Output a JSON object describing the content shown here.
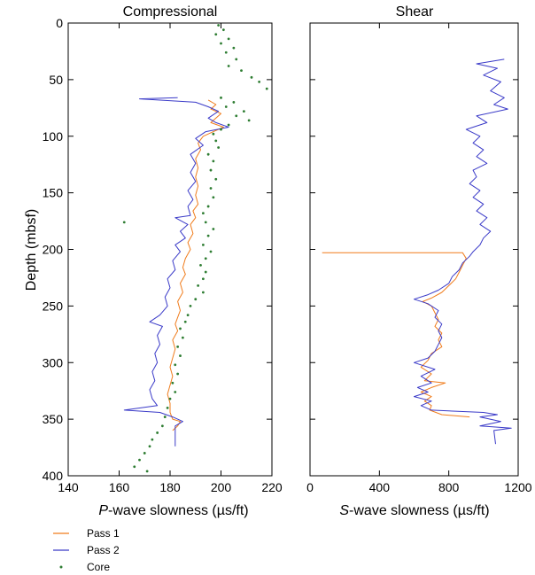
{
  "colors": {
    "pass1": "#f07c1c",
    "pass2": "#3a3ac8",
    "core": "#2e7d32",
    "axis": "#000000"
  },
  "legend": {
    "entries": [
      {
        "label": "Pass 1",
        "kind": "line",
        "color": "#f07c1c"
      },
      {
        "label": "Pass 2",
        "kind": "line",
        "color": "#3a3ac8"
      },
      {
        "label": "Core",
        "kind": "dot",
        "color": "#2e7d32"
      }
    ]
  },
  "chart_data": [
    {
      "type": "line",
      "title": "Compressional",
      "xlabel_italic": "P",
      "xlabel_rest": "-wave slowness (µs/ft)",
      "ylabel": "Depth (mbsf)",
      "xlim": [
        140,
        220
      ],
      "ylim": [
        0,
        400
      ],
      "y_inverted": true,
      "xticks": [
        140,
        160,
        180,
        200,
        220
      ],
      "yticks": [
        0,
        50,
        100,
        150,
        200,
        250,
        300,
        350,
        400
      ],
      "series": [
        {
          "name": "Pass 1",
          "points": [
            [
              195,
              68
            ],
            [
              198,
              72
            ],
            [
              196,
              76
            ],
            [
              200,
              80
            ],
            [
              198,
              84
            ],
            [
              196,
              88
            ],
            [
              201,
              92
            ],
            [
              197,
              96
            ],
            [
              193,
              100
            ],
            [
              191,
              106
            ],
            [
              192,
              112
            ],
            [
              190,
              120
            ],
            [
              191,
              128
            ],
            [
              190,
              136
            ],
            [
              191,
              144
            ],
            [
              190,
              152
            ],
            [
              191,
              160
            ],
            [
              189,
              166
            ],
            [
              190,
              172
            ],
            [
              188,
              178
            ],
            [
              189,
              186
            ],
            [
              187,
              194
            ],
            [
              188,
              200
            ],
            [
              186,
              208
            ],
            [
              185,
              216
            ],
            [
              186,
              222
            ],
            [
              184,
              230
            ],
            [
              185,
              238
            ],
            [
              183,
              246
            ],
            [
              184,
              254
            ],
            [
              183,
              260
            ],
            [
              182,
              266
            ],
            [
              183,
              272
            ],
            [
              181,
              280
            ],
            [
              182,
              288
            ],
            [
              181,
              296
            ],
            [
              180,
              304
            ],
            [
              181,
              312
            ],
            [
              180,
              320
            ],
            [
              179,
              328
            ],
            [
              180,
              336
            ],
            [
              180,
              344
            ],
            [
              181,
              350
            ],
            [
              184,
              352
            ],
            [
              183,
              356
            ],
            [
              181,
              360
            ]
          ]
        },
        {
          "name": "Pass 2",
          "points": [
            [
              183,
              66
            ],
            [
              168,
              67
            ],
            [
              190,
              70
            ],
            [
              195,
              74
            ],
            [
              199,
              78
            ],
            [
              195,
              84
            ],
            [
              198,
              88
            ],
            [
              203,
              92
            ],
            [
              194,
              96
            ],
            [
              190,
              102
            ],
            [
              193,
              108
            ],
            [
              188,
              116
            ],
            [
              190,
              124
            ],
            [
              188,
              132
            ],
            [
              190,
              140
            ],
            [
              187,
              148
            ],
            [
              189,
              156
            ],
            [
              187,
              162
            ],
            [
              188,
              170
            ],
            [
              182,
              172
            ],
            [
              187,
              178
            ],
            [
              184,
              184
            ],
            [
              186,
              190
            ],
            [
              182,
              196
            ],
            [
              184,
              202
            ],
            [
              181,
              210
            ],
            [
              182,
              218
            ],
            [
              179,
              226
            ],
            [
              180,
              234
            ],
            [
              178,
              242
            ],
            [
              179,
              250
            ],
            [
              176,
              258
            ],
            [
              172,
              264
            ],
            [
              177,
              268
            ],
            [
              175,
              276
            ],
            [
              176,
              284
            ],
            [
              174,
              292
            ],
            [
              175,
              300
            ],
            [
              173,
              308
            ],
            [
              174,
              316
            ],
            [
              172,
              324
            ],
            [
              173,
              332
            ],
            [
              175,
              338
            ],
            [
              162,
              342
            ],
            [
              176,
              344
            ],
            [
              181,
              348
            ],
            [
              185,
              352
            ],
            [
              182,
              356
            ],
            [
              182,
              362
            ],
            [
              182,
              374
            ]
          ]
        },
        {
          "name": "Core",
          "kind": "scatter",
          "points": [
            [
              199,
              2
            ],
            [
              201,
              6
            ],
            [
              198,
              10
            ],
            [
              203,
              14
            ],
            [
              200,
              18
            ],
            [
              205,
              22
            ],
            [
              202,
              26
            ],
            [
              206,
              32
            ],
            [
              203,
              38
            ],
            [
              208,
              42
            ],
            [
              212,
              48
            ],
            [
              215,
              52
            ],
            [
              218,
              58
            ],
            [
              200,
              66
            ],
            [
              205,
              70
            ],
            [
              202,
              74
            ],
            [
              209,
              78
            ],
            [
              206,
              82
            ],
            [
              211,
              86
            ],
            [
              203,
              90
            ],
            [
              200,
              94
            ],
            [
              197,
              98
            ],
            [
              198,
              104
            ],
            [
              199,
              110
            ],
            [
              195,
              116
            ],
            [
              197,
              122
            ],
            [
              196,
              130
            ],
            [
              198,
              138
            ],
            [
              196,
              146
            ],
            [
              197,
              154
            ],
            [
              195,
              162
            ],
            [
              193,
              168
            ],
            [
              194,
              176
            ],
            [
              197,
              182
            ],
            [
              195,
              188
            ],
            [
              193,
              196
            ],
            [
              196,
              202
            ],
            [
              194,
              208
            ],
            [
              192,
              214
            ],
            [
              194,
              220
            ],
            [
              193,
              226
            ],
            [
              191,
              232
            ],
            [
              193,
              238
            ],
            [
              190,
              244
            ],
            [
              188,
              250
            ],
            [
              187,
              258
            ],
            [
              186,
              264
            ],
            [
              184,
              270
            ],
            [
              185,
              278
            ],
            [
              183,
              286
            ],
            [
              184,
              294
            ],
            [
              182,
              302
            ],
            [
              183,
              310
            ],
            [
              181,
              318
            ],
            [
              182,
              326
            ],
            [
              180,
              332
            ],
            [
              179,
              340
            ],
            [
              178,
              348
            ],
            [
              177,
              356
            ],
            [
              175,
              362
            ],
            [
              173,
              368
            ],
            [
              172,
              374
            ],
            [
              170,
              380
            ],
            [
              168,
              386
            ],
            [
              166,
              392
            ],
            [
              171,
              396
            ],
            [
              162,
              176
            ]
          ]
        }
      ]
    },
    {
      "type": "line",
      "title": "Shear",
      "xlabel_italic": "S",
      "xlabel_rest": "-wave slowness (µs/ft)",
      "xlim": [
        0,
        1200
      ],
      "ylim": [
        0,
        400
      ],
      "y_inverted": true,
      "xticks": [
        0,
        400,
        800,
        1200
      ],
      "yticks": [
        50,
        100,
        150,
        200,
        250,
        300,
        350
      ],
      "series": [
        {
          "name": "Pass 1",
          "points": [
            [
              70,
              203
            ],
            [
              880,
              203
            ],
            [
              900,
              208
            ],
            [
              880,
              214
            ],
            [
              860,
              220
            ],
            [
              840,
              226
            ],
            [
              800,
              232
            ],
            [
              760,
              238
            ],
            [
              700,
              243
            ],
            [
              650,
              246
            ],
            [
              700,
              250
            ],
            [
              720,
              256
            ],
            [
              740,
              262
            ],
            [
              720,
              268
            ],
            [
              760,
              274
            ],
            [
              740,
              280
            ],
            [
              760,
              286
            ],
            [
              700,
              292
            ],
            [
              680,
              298
            ],
            [
              640,
              304
            ],
            [
              700,
              310
            ],
            [
              660,
              316
            ],
            [
              780,
              318
            ],
            [
              700,
              322
            ],
            [
              640,
              326
            ],
            [
              700,
              330
            ],
            [
              660,
              334
            ],
            [
              700,
              338
            ],
            [
              690,
              342
            ],
            [
              760,
              346
            ],
            [
              920,
              348
            ]
          ]
        },
        {
          "name": "Pass 2",
          "points": [
            [
              1120,
              32
            ],
            [
              960,
              36
            ],
            [
              1080,
              40
            ],
            [
              1000,
              46
            ],
            [
              1100,
              52
            ],
            [
              1040,
              60
            ],
            [
              1120,
              66
            ],
            [
              1060,
              72
            ],
            [
              1140,
              76
            ],
            [
              960,
              82
            ],
            [
              1020,
              88
            ],
            [
              900,
              94
            ],
            [
              980,
              100
            ],
            [
              940,
              106
            ],
            [
              1000,
              112
            ],
            [
              960,
              118
            ],
            [
              1020,
              124
            ],
            [
              940,
              130
            ],
            [
              960,
              136
            ],
            [
              920,
              142
            ],
            [
              980,
              148
            ],
            [
              940,
              154
            ],
            [
              1000,
              160
            ],
            [
              960,
              166
            ],
            [
              1020,
              172
            ],
            [
              980,
              178
            ],
            [
              1040,
              184
            ],
            [
              1000,
              190
            ],
            [
              980,
              196
            ],
            [
              940,
              202
            ],
            [
              920,
              206
            ],
            [
              880,
              212
            ],
            [
              860,
              218
            ],
            [
              820,
              224
            ],
            [
              800,
              230
            ],
            [
              740,
              236
            ],
            [
              680,
              240
            ],
            [
              600,
              244
            ],
            [
              680,
              248
            ],
            [
              740,
              254
            ],
            [
              720,
              260
            ],
            [
              760,
              266
            ],
            [
              740,
              272
            ],
            [
              760,
              278
            ],
            [
              740,
              284
            ],
            [
              720,
              290
            ],
            [
              680,
              296
            ],
            [
              600,
              300
            ],
            [
              720,
              306
            ],
            [
              640,
              312
            ],
            [
              700,
              318
            ],
            [
              620,
              322
            ],
            [
              680,
              326
            ],
            [
              600,
              330
            ],
            [
              700,
              334
            ],
            [
              640,
              338
            ],
            [
              700,
              342
            ],
            [
              1000,
              344
            ],
            [
              1080,
              346
            ],
            [
              980,
              348
            ],
            [
              1100,
              352
            ],
            [
              980,
              356
            ],
            [
              1160,
              358
            ],
            [
              1060,
              360
            ],
            [
              1070,
              372
            ]
          ]
        }
      ]
    }
  ]
}
